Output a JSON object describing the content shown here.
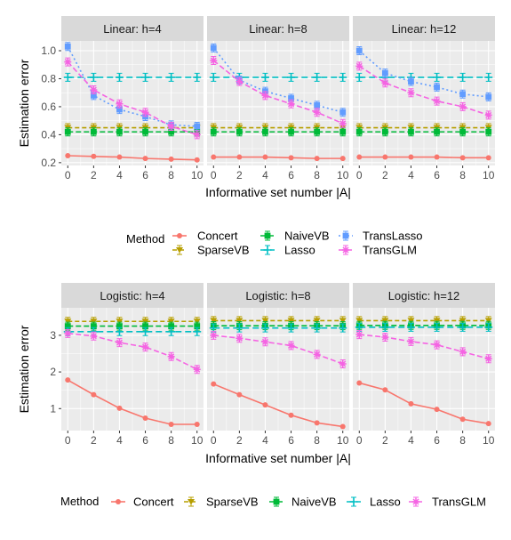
{
  "chart_data": [
    {
      "type": "line",
      "xlabel": "Informative set number |A|",
      "ylabel": "Estimation error",
      "x_ticks": [
        0,
        2,
        4,
        6,
        8,
        10
      ],
      "y_ticks": [
        0.2,
        0.4,
        0.6,
        0.8,
        1.0
      ],
      "y_tick_labels": [
        "0.2",
        "0.4",
        "0.6",
        "0.8",
        "1.0"
      ],
      "ylim": [
        0.18,
        1.07
      ],
      "xlim": [
        -0.5,
        10.5
      ],
      "grid": true,
      "legend_title": "Method",
      "legend_position": "bottom",
      "legend_layout": "grid3",
      "panels": [
        {
          "title": "Linear: h=4",
          "x": [
            0,
            2,
            4,
            6,
            8,
            10
          ],
          "series": [
            {
              "name": "Concert",
              "values": [
                0.25,
                0.245,
                0.24,
                0.23,
                0.225,
                0.22
              ]
            },
            {
              "name": "SparseVB",
              "values": [
                0.45,
                0.45,
                0.45,
                0.45,
                0.45,
                0.45
              ]
            },
            {
              "name": "NaiveVB",
              "values": [
                0.42,
                0.42,
                0.42,
                0.42,
                0.42,
                0.42
              ]
            },
            {
              "name": "Lasso",
              "values": [
                0.81,
                0.81,
                0.81,
                0.81,
                0.81,
                0.81
              ]
            },
            {
              "name": "TransLasso",
              "values": [
                1.03,
                0.68,
                0.58,
                0.53,
                0.47,
                0.46
              ]
            },
            {
              "name": "TransGLM",
              "values": [
                0.92,
                0.72,
                0.62,
                0.56,
                0.46,
                0.4
              ]
            }
          ]
        },
        {
          "title": "Linear: h=8",
          "x": [
            0,
            2,
            4,
            6,
            8,
            10
          ],
          "series": [
            {
              "name": "Concert",
              "values": [
                0.24,
                0.24,
                0.24,
                0.235,
                0.23,
                0.23
              ]
            },
            {
              "name": "SparseVB",
              "values": [
                0.45,
                0.45,
                0.45,
                0.45,
                0.45,
                0.45
              ]
            },
            {
              "name": "NaiveVB",
              "values": [
                0.42,
                0.42,
                0.42,
                0.42,
                0.42,
                0.42
              ]
            },
            {
              "name": "Lasso",
              "values": [
                0.81,
                0.81,
                0.81,
                0.81,
                0.81,
                0.81
              ]
            },
            {
              "name": "TransLasso",
              "values": [
                1.02,
                0.79,
                0.71,
                0.66,
                0.61,
                0.56
              ]
            },
            {
              "name": "TransGLM",
              "values": [
                0.93,
                0.78,
                0.68,
                0.62,
                0.56,
                0.48
              ]
            }
          ]
        },
        {
          "title": "Linear: h=12",
          "x": [
            0,
            2,
            4,
            6,
            8,
            10
          ],
          "series": [
            {
              "name": "Concert",
              "values": [
                0.24,
                0.24,
                0.24,
                0.24,
                0.235,
                0.235
              ]
            },
            {
              "name": "SparseVB",
              "values": [
                0.45,
                0.45,
                0.45,
                0.45,
                0.45,
                0.45
              ]
            },
            {
              "name": "NaiveVB",
              "values": [
                0.42,
                0.42,
                0.42,
                0.42,
                0.42,
                0.42
              ]
            },
            {
              "name": "Lasso",
              "values": [
                0.81,
                0.81,
                0.81,
                0.81,
                0.81,
                0.81
              ]
            },
            {
              "name": "TransLasso",
              "values": [
                1.0,
                0.84,
                0.78,
                0.74,
                0.69,
                0.67
              ]
            },
            {
              "name": "TransGLM",
              "values": [
                0.89,
                0.77,
                0.7,
                0.64,
                0.6,
                0.54
              ]
            }
          ]
        }
      ]
    },
    {
      "type": "line",
      "xlabel": "Informative set number |A|",
      "ylabel": "Estimation error",
      "x_ticks": [
        0,
        2,
        4,
        6,
        8,
        10
      ],
      "y_ticks": [
        1,
        2,
        3
      ],
      "y_tick_labels": [
        "1",
        "2",
        "3"
      ],
      "ylim": [
        0.4,
        3.75
      ],
      "xlim": [
        -0.5,
        10.5
      ],
      "grid": true,
      "legend_title": "Method",
      "legend_position": "bottom",
      "legend_layout": "row",
      "panels": [
        {
          "title": "Logistic: h=4",
          "x": [
            0,
            2,
            4,
            6,
            8,
            10
          ],
          "series": [
            {
              "name": "Concert",
              "values": [
                1.78,
                1.38,
                1.01,
                0.74,
                0.57,
                0.57
              ]
            },
            {
              "name": "SparseVB",
              "values": [
                3.38,
                3.38,
                3.38,
                3.38,
                3.38,
                3.38
              ]
            },
            {
              "name": "NaiveVB",
              "values": [
                3.25,
                3.25,
                3.25,
                3.25,
                3.25,
                3.25
              ]
            },
            {
              "name": "Lasso",
              "values": [
                3.1,
                3.1,
                3.1,
                3.1,
                3.1,
                3.1
              ]
            },
            {
              "name": "TransGLM",
              "values": [
                3.05,
                2.98,
                2.8,
                2.68,
                2.42,
                2.07
              ]
            }
          ]
        },
        {
          "title": "Logistic: h=8",
          "x": [
            0,
            2,
            4,
            6,
            8,
            10
          ],
          "series": [
            {
              "name": "Concert",
              "values": [
                1.67,
                1.38,
                1.1,
                0.82,
                0.61,
                0.51
              ]
            },
            {
              "name": "SparseVB",
              "values": [
                3.4,
                3.4,
                3.4,
                3.4,
                3.4,
                3.4
              ]
            },
            {
              "name": "NaiveVB",
              "values": [
                3.26,
                3.26,
                3.26,
                3.26,
                3.26,
                3.26
              ]
            },
            {
              "name": "Lasso",
              "values": [
                3.2,
                3.2,
                3.2,
                3.2,
                3.2,
                3.2
              ]
            },
            {
              "name": "TransGLM",
              "values": [
                3.0,
                2.92,
                2.82,
                2.72,
                2.48,
                2.22
              ]
            }
          ]
        },
        {
          "title": "Logistic: h=12",
          "x": [
            0,
            2,
            4,
            6,
            8,
            10
          ],
          "series": [
            {
              "name": "Concert",
              "values": [
                1.7,
                1.51,
                1.13,
                0.98,
                0.71,
                0.59
              ]
            },
            {
              "name": "SparseVB",
              "values": [
                3.4,
                3.4,
                3.4,
                3.4,
                3.4,
                3.4
              ]
            },
            {
              "name": "NaiveVB",
              "values": [
                3.27,
                3.27,
                3.27,
                3.27,
                3.27,
                3.27
              ]
            },
            {
              "name": "Lasso",
              "values": [
                3.22,
                3.22,
                3.22,
                3.22,
                3.22,
                3.22
              ]
            },
            {
              "name": "TransGLM",
              "values": [
                3.02,
                2.95,
                2.83,
                2.74,
                2.55,
                2.36
              ]
            }
          ]
        }
      ]
    }
  ],
  "method_styles": {
    "Concert": {
      "color": "#F8766D",
      "shape": "circle",
      "dash": ""
    },
    "SparseVB": {
      "color": "#B79F00",
      "shape": "triangle-down",
      "dash": "5,3"
    },
    "NaiveVB": {
      "color": "#00BA38",
      "shape": "square",
      "dash": "6,3"
    },
    "Lasso": {
      "color": "#00BFC4",
      "shape": "plus",
      "dash": "7,4"
    },
    "TransLasso": {
      "color": "#619CFF",
      "shape": "square",
      "dash": "2,3"
    },
    "TransGLM": {
      "color": "#F564E3",
      "shape": "asterisk",
      "dash": "6,3"
    }
  }
}
